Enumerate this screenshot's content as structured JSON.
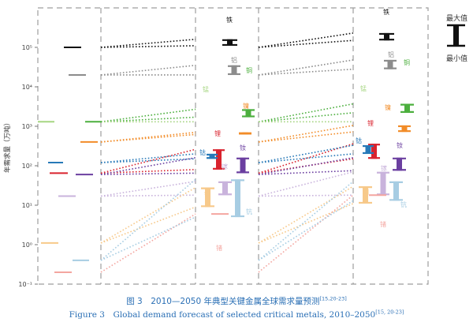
{
  "chart_data": {
    "type": "range",
    "ylabel": "年需求量（万吨）",
    "yscale": "log",
    "ylim": [
      0.1,
      1000000
    ],
    "yticks": [
      0.1,
      1,
      10,
      100,
      1000,
      10000,
      100000
    ],
    "ytick_labels": [
      "10⁻¹",
      "10⁰",
      "10¹",
      "10²",
      "10³",
      "10⁴",
      "10⁵"
    ],
    "legend": {
      "max_label": "最大值",
      "min_label": "最小值"
    },
    "metals": [
      {
        "name": "铁",
        "color": "#111111",
        "v2010": 100000,
        "range_2030": [
          110000,
          160000
        ],
        "range_2050": [
          150000,
          230000
        ],
        "label_2030": "铁",
        "label_2050": "铁"
      },
      {
        "name": "铝",
        "color": "#8c8c8c",
        "v2010": 20000,
        "range_2030": [
          20000,
          35000
        ],
        "range_2050": [
          28000,
          48000
        ],
        "label_2030": "铝",
        "label_2050": "铝"
      },
      {
        "name": "铜",
        "color": "#4caf3e",
        "v2010": 1300,
        "range_2030": [
          1700,
          2700
        ],
        "range_2050": [
          2200,
          3700
        ],
        "label_2030": "铜",
        "label_2050": "铜"
      },
      {
        "name": "锰",
        "color": "#a6d682",
        "v2010": 1300,
        "range_2030": [
          1300,
          1300
        ],
        "range_2050": [
          1300,
          1300
        ],
        "label_2030": "锰",
        "label_2050": "锰"
      },
      {
        "name": "镍",
        "color": "#f28c28",
        "v2010": 400,
        "range_2030": [
          620,
          700
        ],
        "range_2050": [
          720,
          1050
        ],
        "label_2030": "镍",
        "label_2050": "镍"
      },
      {
        "name": "锂",
        "color": "#d9232e",
        "v2010": 65,
        "range_2030": [
          80,
          260
        ],
        "range_2050": [
          150,
          360
        ],
        "label_2030": "锂",
        "label_2050": "锂"
      },
      {
        "name": "钴",
        "color": "#2779b8",
        "v2010": 120,
        "range_2030": [
          150,
          200
        ],
        "range_2050": [
          200,
          330
        ],
        "label_2030": "钴",
        "label_2050": "钴"
      },
      {
        "name": "钕",
        "color": "#6b3fa0",
        "v2010": 60,
        "range_2030": [
          65,
          160
        ],
        "range_2050": [
          75,
          160
        ],
        "label_2030": "钕",
        "label_2050": "钕"
      },
      {
        "name": "镓",
        "color": "#c9b3dc",
        "v2010": 17,
        "range_2030": [
          18,
          40
        ],
        "range_2050": [
          18,
          70
        ],
        "label_2030": "镓",
        "label_2050": "镓"
      },
      {
        "name": "铟",
        "color": "#f7c98a",
        "v2010": 1.1,
        "range_2030": [
          9,
          28
        ],
        "range_2050": [
          11,
          30
        ],
        "label_2030": "铟",
        "label_2050": "铟"
      },
      {
        "name": "锗",
        "color": "#f4a6a0",
        "v2010": 0.2,
        "range_2030": [
          6,
          6
        ],
        "range_2050": [
          18,
          18
        ],
        "label_2030": "锗",
        "label_2050": "锗"
      },
      {
        "name": "钪",
        "color": "#a7cde3",
        "v2010": 0.4,
        "range_2030": [
          5,
          45
        ],
        "range_2050": [
          13,
          40
        ],
        "label_2030": "钪",
        "label_2050": "钪"
      }
    ]
  },
  "caption": {
    "zh": "图 3　2010—2050 年典型关键金属全球需求量预测",
    "zh_ref": "[15,20-23]",
    "en": "Figure 3　Global demand forecast of selected critical metals, 2010–2050",
    "en_ref": "[15, 20-23]"
  }
}
